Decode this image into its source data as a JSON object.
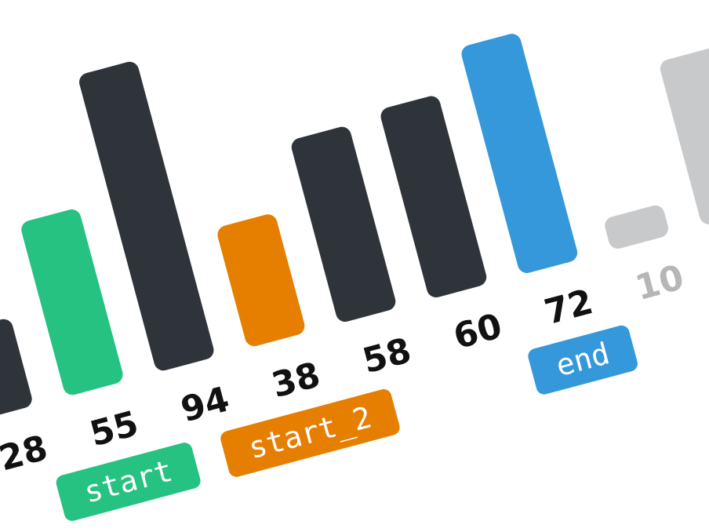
{
  "array": [
    {
      "value": 28,
      "label": "28",
      "color": "#2f343b",
      "label_color": "#111111"
    },
    {
      "value": 55,
      "label": "55",
      "color": "#26c281",
      "label_color": "#111111"
    },
    {
      "value": 94,
      "label": "94",
      "color": "#2f343b",
      "label_color": "#111111"
    },
    {
      "value": 38,
      "label": "38",
      "color": "#e67e00",
      "label_color": "#111111"
    },
    {
      "value": 58,
      "label": "58",
      "color": "#2f343b",
      "label_color": "#111111"
    },
    {
      "value": 60,
      "label": "60",
      "color": "#2f343b",
      "label_color": "#111111"
    },
    {
      "value": 72,
      "label": "72",
      "color": "#3498db",
      "label_color": "#111111"
    },
    {
      "value": 10,
      "label": "10",
      "color": "#c8c9cb",
      "label_color": "#b5b6b8"
    },
    {
      "value": 52,
      "label": "",
      "color": "#c8c9cb",
      "label_color": "#b5b6b8"
    }
  ],
  "pointers": [
    {
      "name": "start",
      "index": 1,
      "color": "#26c281"
    },
    {
      "name": "start_2",
      "index": 3,
      "color": "#e67e00"
    },
    {
      "name": "end",
      "index": 6,
      "color": "#3498db"
    }
  ]
}
